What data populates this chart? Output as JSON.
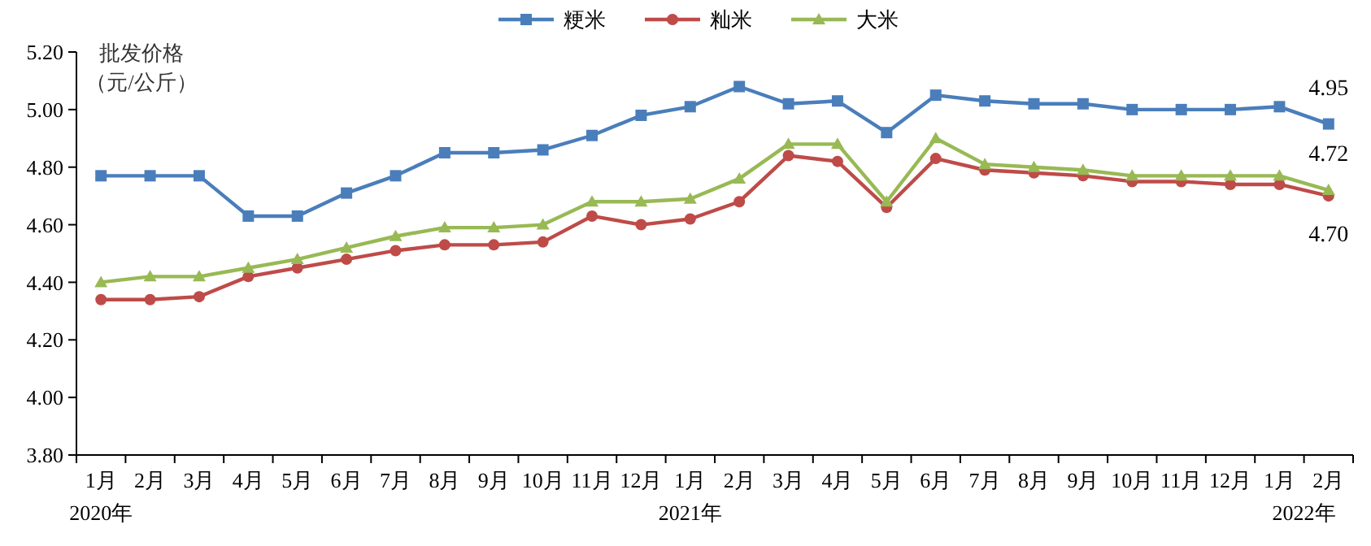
{
  "chart_data": {
    "type": "line",
    "ylabel": "批发价格（元/公斤）",
    "legend": "top",
    "marker": "circle",
    "line_style": "solid",
    "grid": false,
    "categories": [
      "1月",
      "2月",
      "3月",
      "4月",
      "5月",
      "6月",
      "7月",
      "8月",
      "9月",
      "10月",
      "11月",
      "12月",
      "1月",
      "2月",
      "3月",
      "4月",
      "5月",
      "6月",
      "7月",
      "8月",
      "9月",
      "10月",
      "11月",
      "12月",
      "1月",
      "2月"
    ],
    "annotations": [
      "2020年",
      "2021年",
      "2022年"
    ],
    "ylim": [
      3.8,
      5.2
    ],
    "yticks": [
      {
        "value": 3.8,
        "label": "3.80"
      },
      {
        "value": 4,
        "label": "4.00"
      },
      {
        "value": 4.2,
        "label": "4.20"
      },
      {
        "value": 4.4,
        "label": "4.40"
      },
      {
        "value": 4.6,
        "label": "4.60"
      },
      {
        "value": 4.8,
        "label": "4.80"
      },
      {
        "value": 5,
        "label": "5.00"
      },
      {
        "value": 5.2,
        "label": "5.20"
      }
    ],
    "series": [
      {
        "name": "粳米",
        "color": "#4a7ebb",
        "marker": "square",
        "values": [
          4.77,
          4.77,
          4.77,
          4.63,
          4.63,
          4.71,
          4.77,
          4.85,
          4.85,
          4.86,
          4.91,
          4.98,
          5.01,
          5.08,
          5.02,
          5.03,
          4.92,
          5.05,
          5.03,
          5.02,
          5.02,
          5.0,
          5.0,
          5.0,
          5.01,
          4.95
        ],
        "value_labels": [
          null,
          null,
          null,
          null,
          null,
          null,
          null,
          null,
          null,
          null,
          null,
          null,
          null,
          null,
          null,
          null,
          null,
          null,
          null,
          null,
          null,
          null,
          null,
          null,
          null,
          "4.95"
        ]
      },
      {
        "name": "籼米",
        "color": "#be4b48",
        "marker": "circle",
        "values": [
          4.34,
          4.34,
          4.35,
          4.42,
          4.45,
          4.48,
          4.51,
          4.53,
          4.53,
          4.54,
          4.63,
          4.6,
          4.62,
          4.68,
          4.84,
          4.82,
          4.66,
          4.83,
          4.79,
          4.78,
          4.77,
          4.75,
          4.75,
          4.74,
          4.74,
          4.7
        ],
        "value_labels": [
          null,
          null,
          null,
          null,
          null,
          null,
          null,
          null,
          null,
          null,
          null,
          null,
          null,
          null,
          null,
          null,
          null,
          null,
          null,
          null,
          null,
          null,
          null,
          null,
          null,
          "4.70"
        ]
      },
      {
        "name": "大米",
        "color": "#98b954",
        "marker": "triangle",
        "values": [
          4.4,
          4.42,
          4.42,
          4.45,
          4.48,
          4.52,
          4.56,
          4.59,
          4.59,
          4.6,
          4.68,
          4.68,
          4.69,
          4.76,
          4.88,
          4.88,
          4.68,
          4.9,
          4.81,
          4.8,
          4.79,
          4.77,
          4.77,
          4.77,
          4.77,
          4.72
        ],
        "value_labels": [
          null,
          null,
          null,
          null,
          null,
          null,
          null,
          null,
          null,
          null,
          null,
          null,
          null,
          null,
          null,
          null,
          null,
          null,
          null,
          null,
          null,
          null,
          null,
          null,
          null,
          "4.72"
        ]
      }
    ]
  }
}
